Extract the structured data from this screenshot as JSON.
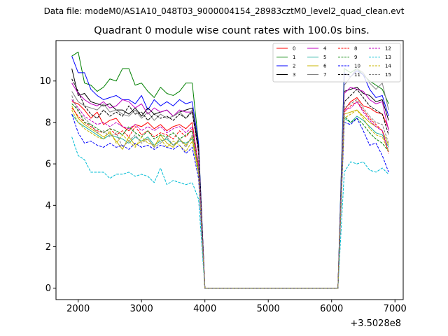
{
  "suptitle": "Data file: modeM0/AS1A10_048T03_9000004154_28983cztM0_level2_quad_clean.evt",
  "chart_data": {
    "type": "line",
    "title": "Quadrant 0 module wise count rates with 100.0s bins.",
    "xlabel": "",
    "ylabel": "",
    "x_offset_label": "+3.5028e8",
    "xlim": [
      1650,
      7130
    ],
    "ylim": [
      -0.55,
      11.95
    ],
    "xticks": [
      2000,
      3000,
      4000,
      5000,
      6000,
      7000
    ],
    "yticks": [
      0,
      2,
      4,
      6,
      8,
      10
    ],
    "legend_position": "top-right",
    "x": [
      1900,
      2000,
      2100,
      2200,
      2300,
      2400,
      2500,
      2600,
      2700,
      2800,
      2900,
      3000,
      3100,
      3200,
      3300,
      3400,
      3500,
      3600,
      3700,
      3800,
      3900,
      4000,
      4100,
      4200,
      4300,
      4400,
      4500,
      4600,
      4700,
      4800,
      4900,
      5000,
      5100,
      5200,
      5300,
      5400,
      5500,
      5600,
      5700,
      5800,
      5900,
      6000,
      6100,
      6200,
      6300,
      6400,
      6500,
      6600,
      6700,
      6800,
      6900
    ],
    "series": [
      {
        "name": "0",
        "color": "#ff0000",
        "dash": "solid",
        "values": [
          9.0,
          8.9,
          8.6,
          8.2,
          8.5,
          7.9,
          8.1,
          8.2,
          7.8,
          7.6,
          7.9,
          7.8,
          8.0,
          7.7,
          7.9,
          7.6,
          7.8,
          7.9,
          7.7,
          8.0,
          5.9,
          0,
          0,
          0,
          0,
          0,
          0,
          0,
          0,
          0,
          0,
          0,
          0,
          0,
          0,
          0,
          0,
          0,
          0,
          0,
          0,
          0,
          0,
          8.6,
          9.0,
          9.2,
          8.8,
          8.7,
          8.5,
          8.4,
          7.7
        ]
      },
      {
        "name": "1",
        "color": "#008000",
        "dash": "solid",
        "values": [
          11.2,
          11.4,
          9.9,
          9.8,
          9.5,
          9.7,
          10.1,
          10.0,
          10.6,
          10.6,
          9.8,
          9.9,
          9.5,
          9.2,
          9.7,
          9.4,
          9.3,
          9.5,
          9.9,
          9.9,
          7.0,
          0,
          0,
          0,
          0,
          0,
          0,
          0,
          0,
          0,
          0,
          0,
          0,
          0,
          0,
          0,
          0,
          0,
          0,
          0,
          0,
          0,
          0,
          10.6,
          10.4,
          10.6,
          10.3,
          10.0,
          9.8,
          9.6,
          8.9
        ]
      },
      {
        "name": "2",
        "color": "#0000ff",
        "dash": "solid",
        "values": [
          11.2,
          10.4,
          10.4,
          9.6,
          9.3,
          9.1,
          9.2,
          9.3,
          9.1,
          9.1,
          8.9,
          9.3,
          8.6,
          9.1,
          8.8,
          9.0,
          8.8,
          9.1,
          8.9,
          9.0,
          7.0,
          0,
          0,
          0,
          0,
          0,
          0,
          0,
          0,
          0,
          0,
          0,
          0,
          0,
          0,
          0,
          0,
          0,
          0,
          0,
          0,
          0,
          0,
          10.4,
          10.2,
          10.5,
          10.3,
          9.6,
          9.2,
          9.3,
          8.3
        ]
      },
      {
        "name": "3",
        "color": "#000000",
        "dash": "solid",
        "values": [
          10.6,
          9.3,
          9.4,
          9.0,
          8.9,
          8.8,
          8.9,
          8.6,
          8.6,
          8.4,
          8.7,
          8.3,
          8.7,
          8.4,
          8.5,
          8.6,
          8.3,
          8.5,
          8.6,
          8.7,
          6.8,
          0,
          0,
          0,
          0,
          0,
          0,
          0,
          0,
          0,
          0,
          0,
          0,
          0,
          0,
          0,
          0,
          0,
          0,
          0,
          0,
          0,
          0,
          9.5,
          9.6,
          9.7,
          9.4,
          9.3,
          9.0,
          9.1,
          8.1
        ]
      },
      {
        "name": "4",
        "color": "#c000c0",
        "dash": "solid",
        "values": [
          9.9,
          9.4,
          9.1,
          8.9,
          8.8,
          9.0,
          8.7,
          8.8,
          9.1,
          9.0,
          8.7,
          8.9,
          8.4,
          8.7,
          8.5,
          8.6,
          8.3,
          8.6,
          8.5,
          8.5,
          6.6,
          0,
          0,
          0,
          0,
          0,
          0,
          0,
          0,
          0,
          0,
          0,
          0,
          0,
          0,
          0,
          0,
          0,
          0,
          0,
          0,
          0,
          0,
          9.4,
          9.7,
          9.6,
          9.5,
          9.1,
          8.9,
          9.0,
          7.6
        ]
      },
      {
        "name": "5",
        "color": "#20b0a0",
        "dash": "solid",
        "values": [
          8.4,
          8.0,
          7.8,
          7.6,
          7.4,
          7.2,
          7.4,
          7.3,
          7.2,
          7.0,
          7.3,
          7.1,
          7.3,
          6.9,
          7.1,
          7.2,
          6.9,
          7.1,
          7.0,
          7.2,
          5.6,
          0,
          0,
          0,
          0,
          0,
          0,
          0,
          0,
          0,
          0,
          0,
          0,
          0,
          0,
          0,
          0,
          0,
          0,
          0,
          0,
          0,
          0,
          8.2,
          8.0,
          8.3,
          8.1,
          7.8,
          7.5,
          7.4,
          6.8
        ]
      },
      {
        "name": "6",
        "color": "#c8b400",
        "dash": "solid",
        "values": [
          8.8,
          8.2,
          7.9,
          7.7,
          7.5,
          7.3,
          7.5,
          7.1,
          6.7,
          7.3,
          6.9,
          7.1,
          7.2,
          6.8,
          7.4,
          7.0,
          6.8,
          7.2,
          6.9,
          7.3,
          5.6,
          0,
          0,
          0,
          0,
          0,
          0,
          0,
          0,
          0,
          0,
          0,
          0,
          0,
          0,
          0,
          0,
          0,
          0,
          0,
          0,
          0,
          0,
          8.4,
          8.5,
          8.6,
          8.3,
          8.0,
          7.8,
          7.6,
          6.9
        ]
      },
      {
        "name": "7",
        "color": "#808080",
        "dash": "solid",
        "values": [
          9.5,
          9.0,
          8.8,
          8.7,
          8.6,
          8.9,
          8.5,
          8.6,
          8.4,
          8.3,
          8.6,
          8.2,
          8.5,
          8.1,
          8.4,
          8.2,
          8.3,
          8.5,
          8.2,
          8.6,
          6.5,
          0,
          0,
          0,
          0,
          0,
          0,
          0,
          0,
          0,
          0,
          0,
          0,
          0,
          0,
          0,
          0,
          0,
          0,
          0,
          0,
          0,
          0,
          9.8,
          10.2,
          10.6,
          10.4,
          9.9,
          9.6,
          9.9,
          8.6
        ]
      },
      {
        "name": "8",
        "color": "#ff0000",
        "dash": "dashed",
        "values": [
          8.7,
          8.3,
          8.0,
          7.8,
          7.6,
          7.5,
          7.7,
          7.4,
          7.6,
          7.3,
          7.8,
          7.4,
          7.6,
          7.3,
          7.5,
          7.4,
          7.2,
          7.6,
          7.3,
          7.7,
          5.8,
          0,
          0,
          0,
          0,
          0,
          0,
          0,
          0,
          0,
          0,
          0,
          0,
          0,
          0,
          0,
          0,
          0,
          0,
          0,
          0,
          0,
          0,
          8.5,
          8.8,
          9.0,
          8.6,
          8.2,
          7.9,
          7.6,
          6.5
        ]
      },
      {
        "name": "9",
        "color": "#008000",
        "dash": "dashed",
        "values": [
          8.9,
          8.6,
          8.0,
          7.9,
          7.7,
          7.5,
          7.7,
          7.6,
          7.4,
          7.8,
          7.5,
          7.3,
          7.6,
          7.2,
          7.4,
          7.3,
          7.5,
          7.2,
          7.4,
          7.6,
          5.7,
          0,
          0,
          0,
          0,
          0,
          0,
          0,
          0,
          0,
          0,
          0,
          0,
          0,
          0,
          0,
          0,
          0,
          0,
          0,
          0,
          0,
          0,
          8.3,
          8.0,
          8.2,
          7.9,
          7.5,
          7.2,
          7.0,
          6.6
        ]
      },
      {
        "name": "10",
        "color": "#0000ff",
        "dash": "dashed",
        "values": [
          8.4,
          7.5,
          7.0,
          7.1,
          6.9,
          6.8,
          7.0,
          6.8,
          6.9,
          6.7,
          7.0,
          6.8,
          6.9,
          6.7,
          6.9,
          6.8,
          6.7,
          6.9,
          6.5,
          6.8,
          5.3,
          0,
          0,
          0,
          0,
          0,
          0,
          0,
          0,
          0,
          0,
          0,
          0,
          0,
          0,
          0,
          0,
          0,
          0,
          0,
          0,
          0,
          0,
          8.0,
          7.9,
          8.2,
          7.6,
          6.9,
          7.0,
          6.4,
          5.6
        ]
      },
      {
        "name": "11",
        "color": "#000000",
        "dash": "dashed",
        "values": [
          10.1,
          9.5,
          8.8,
          8.4,
          8.2,
          8.6,
          8.3,
          8.5,
          8.3,
          8.8,
          8.4,
          8.5,
          8.1,
          8.4,
          8.2,
          8.3,
          8.1,
          8.4,
          8.2,
          8.5,
          6.6,
          0,
          0,
          0,
          0,
          0,
          0,
          0,
          0,
          0,
          0,
          0,
          0,
          0,
          0,
          0,
          0,
          0,
          0,
          0,
          0,
          0,
          0,
          9.0,
          9.3,
          9.6,
          9.2,
          8.8,
          8.6,
          8.4,
          7.4
        ]
      },
      {
        "name": "12",
        "color": "#c000c0",
        "dash": "dashed",
        "values": [
          9.1,
          8.7,
          8.3,
          8.1,
          7.9,
          8.0,
          7.8,
          8.0,
          7.8,
          7.7,
          7.9,
          7.6,
          7.8,
          7.6,
          7.8,
          7.5,
          7.7,
          7.8,
          7.5,
          7.8,
          6.0,
          0,
          0,
          0,
          0,
          0,
          0,
          0,
          0,
          0,
          0,
          0,
          0,
          0,
          0,
          0,
          0,
          0,
          0,
          0,
          0,
          0,
          0,
          8.6,
          8.7,
          9.0,
          8.5,
          8.1,
          7.8,
          7.6,
          6.6
        ]
      },
      {
        "name": "13",
        "color": "#00bcd4",
        "dash": "dashed",
        "values": [
          7.3,
          6.4,
          6.2,
          5.6,
          5.6,
          5.6,
          5.3,
          5.5,
          5.5,
          5.6,
          5.4,
          5.5,
          5.4,
          5.1,
          5.8,
          5.0,
          5.2,
          5.1,
          5.0,
          5.1,
          4.3,
          0,
          0,
          0,
          0,
          0,
          0,
          0,
          0,
          0,
          0,
          0,
          0,
          0,
          0,
          0,
          0,
          0,
          0,
          0,
          0,
          0,
          0,
          5.6,
          6.1,
          6.0,
          6.1,
          5.7,
          5.6,
          5.8,
          5.5
        ]
      },
      {
        "name": "14",
        "color": "#c8b400",
        "dash": "dashed",
        "values": [
          8.6,
          8.0,
          7.7,
          7.5,
          7.3,
          7.2,
          7.6,
          7.0,
          7.4,
          7.1,
          6.8,
          7.3,
          7.0,
          6.9,
          7.2,
          6.8,
          7.1,
          6.9,
          6.6,
          7.1,
          5.5,
          0,
          0,
          0,
          0,
          0,
          0,
          0,
          0,
          0,
          0,
          0,
          0,
          0,
          0,
          0,
          0,
          0,
          0,
          0,
          0,
          0,
          0,
          8.2,
          8.4,
          8.6,
          8.2,
          7.7,
          7.4,
          7.3,
          6.6
        ]
      },
      {
        "name": "15",
        "color": "#808080",
        "dash": "dashed",
        "values": [
          9.3,
          8.5,
          8.2,
          7.9,
          7.5,
          7.6,
          7.3,
          7.5,
          6.8,
          7.1,
          7.4,
          7.0,
          7.2,
          6.8,
          7.0,
          7.3,
          6.9,
          7.2,
          6.8,
          7.4,
          5.8,
          0,
          0,
          0,
          0,
          0,
          0,
          0,
          0,
          0,
          0,
          0,
          0,
          0,
          0,
          0,
          0,
          0,
          0,
          0,
          0,
          0,
          0,
          8.7,
          8.9,
          9.1,
          8.7,
          8.3,
          8.0,
          7.9,
          7.0
        ]
      }
    ]
  }
}
